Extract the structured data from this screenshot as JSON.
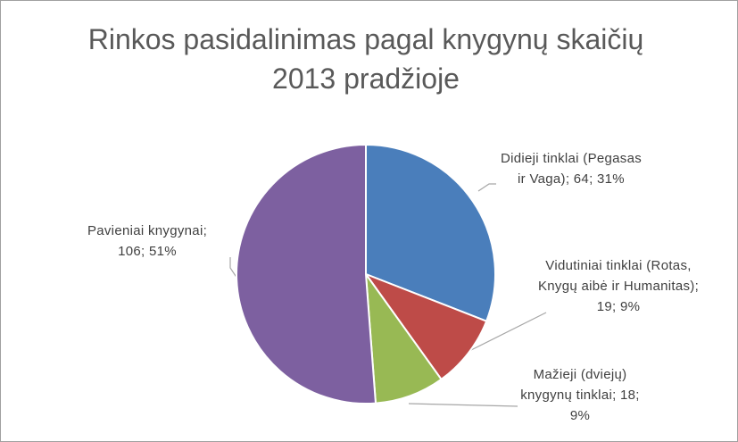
{
  "chart_data": {
    "type": "pie",
    "title": "Rinkos pasidalinimas pagal knygynų skaičių 2013 pradžioje",
    "values": [
      64,
      19,
      18,
      106
    ],
    "value_labels": [
      "Didieji tinklai (Pegasas ir Vaga); 64; 31%",
      "Vidutiniai tinklai (Rotas, Knygų aibė ir Humanitas); 19; 9%",
      "Mažieji (dviejų) knygynų tinklai; 18; 9%",
      "Pavieniai knygynai; 106; 51%"
    ],
    "colors": [
      "#4a7ebb",
      "#be4b48",
      "#98b954",
      "#7d60a0"
    ]
  }
}
